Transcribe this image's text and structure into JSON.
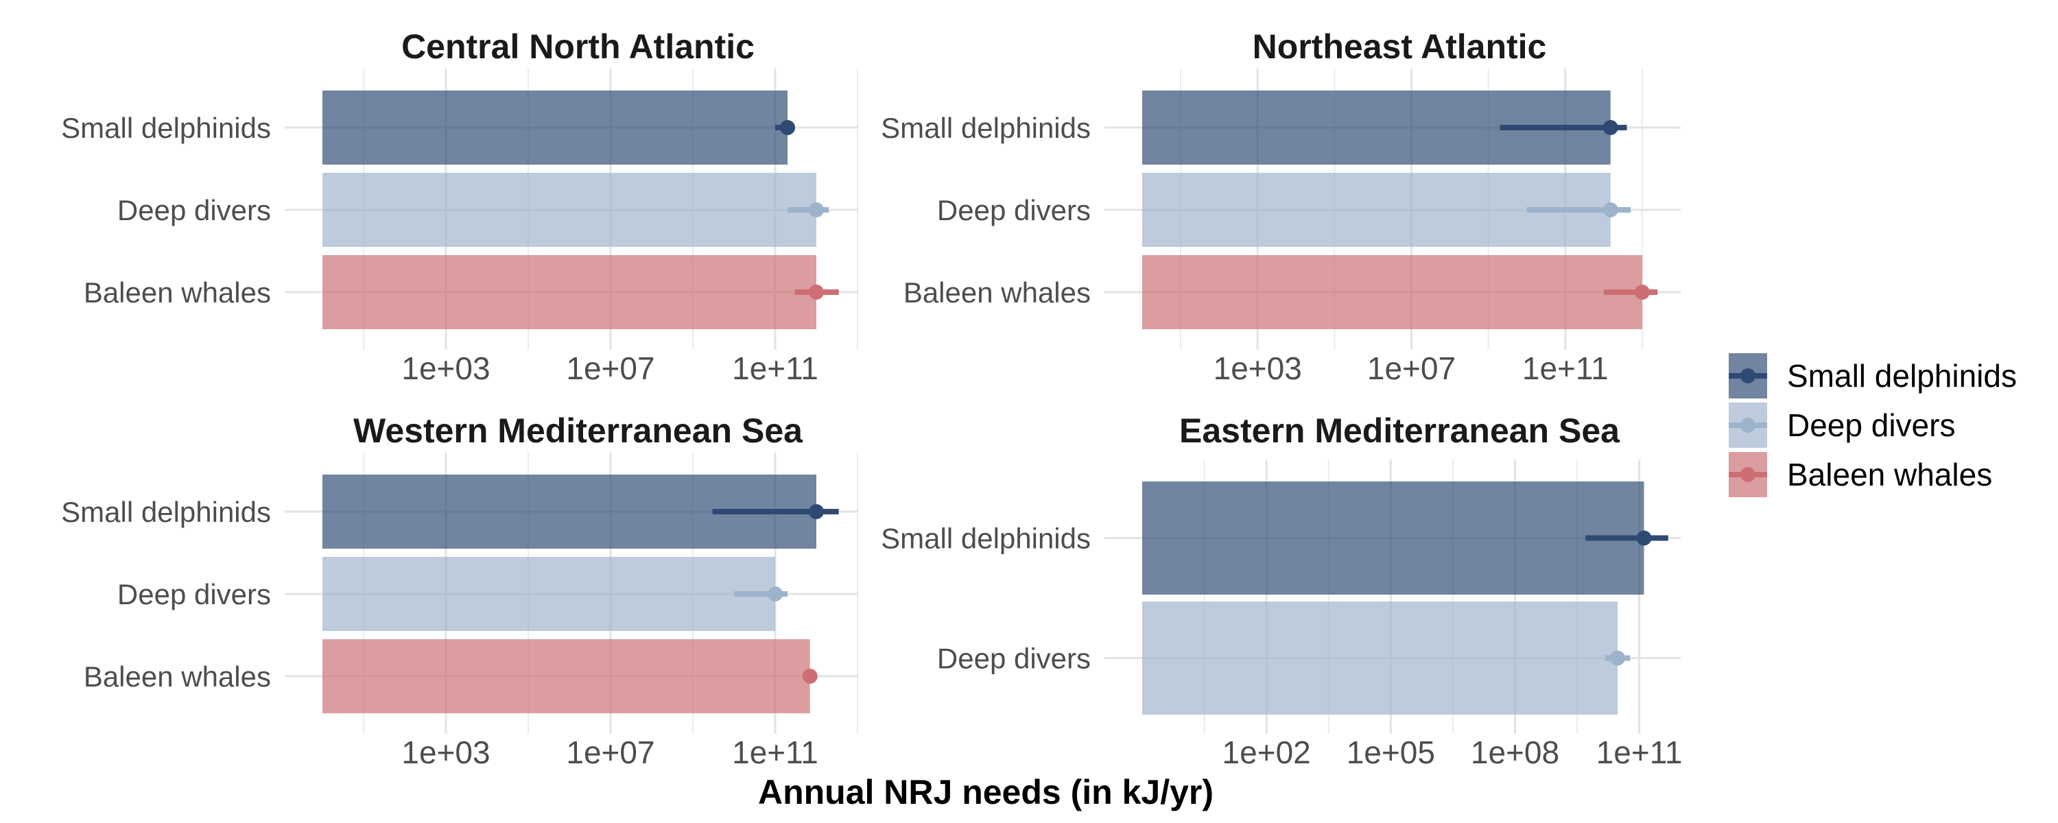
{
  "figure": {
    "xlabel": "Annual NRJ needs (in kJ/yr)"
  },
  "colors": {
    "Small delphinids": "#2e4a73",
    "Deep divers": "#9db3cc",
    "Baleen whales": "#cc6e73"
  },
  "legend": {
    "items": [
      "Small delphinids",
      "Deep divers",
      "Baleen whales"
    ],
    "position": "right"
  },
  "chart_data": [
    {
      "type": "bar",
      "orientation": "horizontal",
      "title": "Central North Atlantic",
      "xscale": "log10",
      "xlim": [
        1.0,
        10000000000000.0
      ],
      "xticks": [
        1000.0,
        10000000.0,
        100000000000.0
      ],
      "tick_labels": [
        "1e+03",
        "1e+07",
        "1e+11"
      ],
      "categories": [
        "Small delphinids",
        "Deep divers",
        "Baleen whales"
      ],
      "values": [
        200000000000.0,
        1000000000000.0,
        1000000000000.0
      ],
      "points": [
        200000000000.0,
        1000000000000.0,
        1000000000000.0
      ],
      "ci_low": [
        100000000000.0,
        200000000000.0,
        300000000000.0
      ],
      "ci_high": [
        300000000000.0,
        2000000000000.0,
        3500000000000.0
      ]
    },
    {
      "type": "bar",
      "orientation": "horizontal",
      "title": "Northeast Atlantic",
      "xscale": "log10",
      "xlim": [
        1.0,
        100000000000000.0
      ],
      "xticks": [
        1000.0,
        10000000.0,
        100000000000.0
      ],
      "tick_labels": [
        "1e+03",
        "1e+07",
        "1e+11"
      ],
      "categories": [
        "Small delphinids",
        "Deep divers",
        "Baleen whales"
      ],
      "values": [
        1500000000000.0,
        1500000000000.0,
        10000000000000.0
      ],
      "points": [
        1500000000000.0,
        1500000000000.0,
        10000000000000.0
      ],
      "ci_low": [
        2000000000.0,
        10000000000.0,
        1000000000000.0
      ],
      "ci_high": [
        4000000000000.0,
        5000000000000.0,
        25000000000000.0
      ]
    },
    {
      "type": "bar",
      "orientation": "horizontal",
      "title": "Western Mediterranean Sea",
      "xscale": "log10",
      "xlim": [
        1.0,
        10000000000000.0
      ],
      "xticks": [
        1000.0,
        10000000.0,
        100000000000.0
      ],
      "tick_labels": [
        "1e+03",
        "1e+07",
        "1e+11"
      ],
      "categories": [
        "Small delphinids",
        "Deep divers",
        "Baleen whales"
      ],
      "values": [
        1000000000000.0,
        100000000000.0,
        700000000000.0
      ],
      "points": [
        1000000000000.0,
        100000000000.0,
        700000000000.0
      ],
      "ci_low": [
        3000000000.0,
        10000000000.0,
        500000000000.0
      ],
      "ci_high": [
        3500000000000.0,
        200000000000.0,
        900000000000.0
      ]
    },
    {
      "type": "bar",
      "orientation": "horizontal",
      "title": "Eastern Mediterranean Sea",
      "xscale": "log10",
      "xlim": [
        0.1,
        1000000000000.0
      ],
      "xticks": [
        100.0,
        100000.0,
        100000000.0,
        100000000000.0
      ],
      "tick_labels": [
        "1e+02",
        "1e+05",
        "1e+08",
        "1e+11"
      ],
      "categories": [
        "Small delphinids",
        "Deep divers"
      ],
      "values": [
        130000000000.0,
        30000000000.0
      ],
      "points": [
        130000000000.0,
        30000000000.0
      ],
      "ci_low": [
        5000000000.0,
        15000000000.0
      ],
      "ci_high": [
        500000000000.0,
        60000000000.0
      ]
    }
  ]
}
